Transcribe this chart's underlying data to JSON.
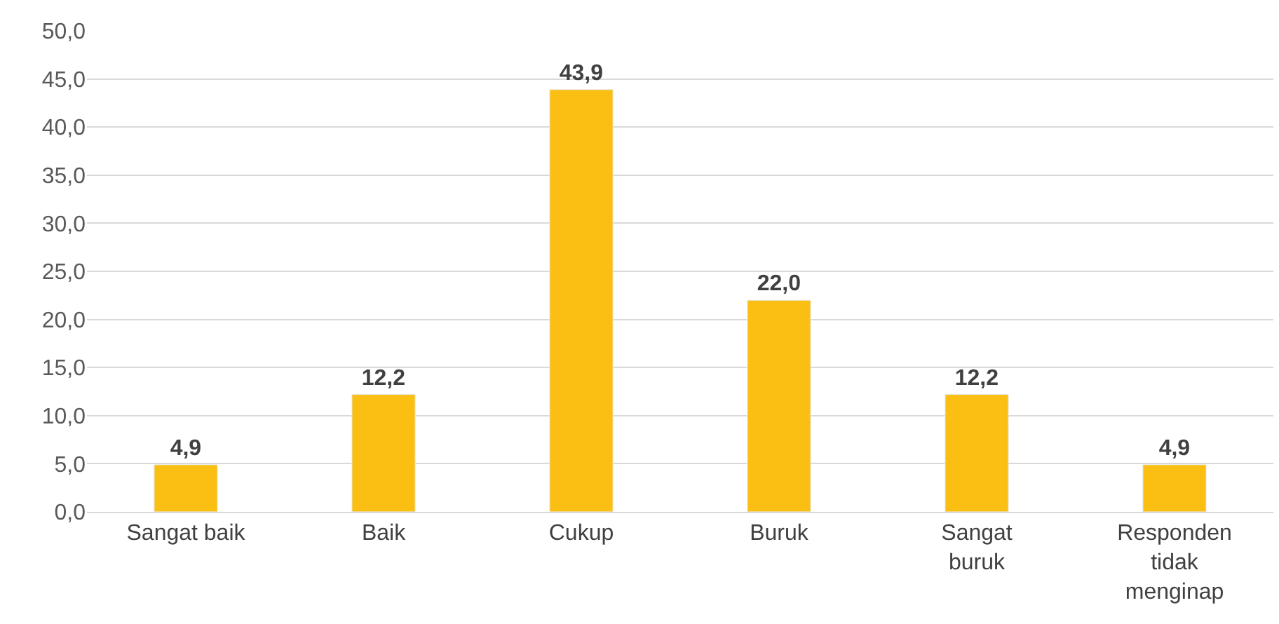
{
  "chart_data": {
    "type": "bar",
    "categories": [
      "Sangat baik",
      "Baik",
      "Cukup",
      "Buruk",
      "Sangat buruk",
      "Responden tidak menginap"
    ],
    "values": [
      4.9,
      12.2,
      43.9,
      22.0,
      12.2,
      4.9
    ],
    "value_labels": [
      "4,9",
      "12,2",
      "43,9",
      "22,0",
      "12,2",
      "4,9"
    ],
    "color": "#fbbf14",
    "ylim": [
      0,
      50
    ],
    "yticks": [
      {
        "value": 0,
        "label": "0,0"
      },
      {
        "value": 5,
        "label": "5,0"
      },
      {
        "value": 10,
        "label": "10,0"
      },
      {
        "value": 15,
        "label": "15,0"
      },
      {
        "value": 20,
        "label": "20,0"
      },
      {
        "value": 25,
        "label": "25,0"
      },
      {
        "value": 30,
        "label": "30,0"
      },
      {
        "value": 35,
        "label": "35,0"
      },
      {
        "value": 40,
        "label": "40,0"
      },
      {
        "value": 45,
        "label": "45,0"
      },
      {
        "value": 50,
        "label": "50,0"
      }
    ],
    "grid": "y",
    "legend": false
  }
}
